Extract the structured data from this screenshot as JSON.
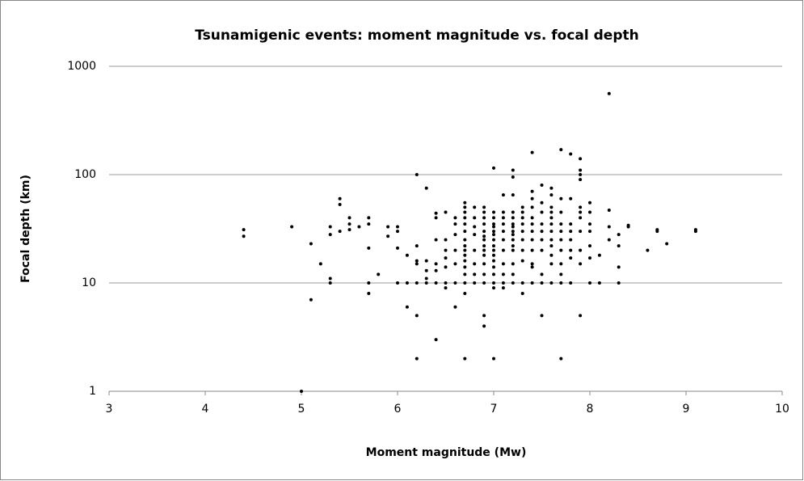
{
  "chart_data": {
    "type": "scatter",
    "title": "Tsunamigenic events: moment magnitude vs. focal depth",
    "xlabel": "Moment magnitude (Mw)",
    "ylabel": "Focal depth (km)",
    "color": "#000000",
    "yscale": "log",
    "grid": true,
    "xlim": [
      3,
      10
    ],
    "xticks": [
      3,
      4,
      5,
      6,
      7,
      8,
      9,
      10
    ],
    "ylim": [
      1,
      1000
    ],
    "yticks": [
      1,
      10,
      100,
      1000
    ],
    "x": [
      4.4,
      4.4,
      4.9,
      5.0,
      5.1,
      5.1,
      5.2,
      5.3,
      5.3,
      5.3,
      5.3,
      5.4,
      5.4,
      5.4,
      5.5,
      5.5,
      5.5,
      5.6,
      5.7,
      5.7,
      5.7,
      5.7,
      5.7,
      5.8,
      5.9,
      5.9,
      6.0,
      6.0,
      6.0,
      6.0,
      6.1,
      6.1,
      6.1,
      6.2,
      6.2,
      6.2,
      6.2,
      6.2,
      6.2,
      6.2,
      6.3,
      6.3,
      6.3,
      6.3,
      6.3,
      6.4,
      6.4,
      6.4,
      6.4,
      6.4,
      6.4,
      6.4,
      6.5,
      6.5,
      6.5,
      6.5,
      6.5,
      6.5,
      6.5,
      6.6,
      6.6,
      6.6,
      6.6,
      6.6,
      6.6,
      6.6,
      6.7,
      6.7,
      6.7,
      6.7,
      6.7,
      6.7,
      6.7,
      6.7,
      6.7,
      6.7,
      6.7,
      6.7,
      6.7,
      6.7,
      6.7,
      6.7,
      6.8,
      6.8,
      6.8,
      6.8,
      6.8,
      6.8,
      6.8,
      6.8,
      6.9,
      6.9,
      6.9,
      6.9,
      6.9,
      6.9,
      6.9,
      6.9,
      6.9,
      6.9,
      6.9,
      6.9,
      6.9,
      6.9,
      6.9,
      7.0,
      7.0,
      7.0,
      7.0,
      7.0,
      7.0,
      7.0,
      7.0,
      7.0,
      7.0,
      7.0,
      7.0,
      7.0,
      7.0,
      7.0,
      7.0,
      7.0,
      7.1,
      7.1,
      7.1,
      7.1,
      7.1,
      7.1,
      7.1,
      7.1,
      7.1,
      7.1,
      7.1,
      7.2,
      7.2,
      7.2,
      7.2,
      7.2,
      7.2,
      7.2,
      7.2,
      7.2,
      7.2,
      7.2,
      7.2,
      7.2,
      7.2,
      7.2,
      7.3,
      7.3,
      7.3,
      7.3,
      7.3,
      7.3,
      7.3,
      7.3,
      7.3,
      7.3,
      7.4,
      7.4,
      7.4,
      7.4,
      7.4,
      7.4,
      7.4,
      7.4,
      7.4,
      7.4,
      7.4,
      7.4,
      7.5,
      7.5,
      7.5,
      7.5,
      7.5,
      7.5,
      7.5,
      7.5,
      7.5,
      7.5,
      7.6,
      7.6,
      7.6,
      7.6,
      7.6,
      7.6,
      7.6,
      7.6,
      7.6,
      7.6,
      7.6,
      7.6,
      7.7,
      7.7,
      7.7,
      7.7,
      7.7,
      7.7,
      7.7,
      7.7,
      7.7,
      7.7,
      7.7,
      7.8,
      7.8,
      7.8,
      7.8,
      7.8,
      7.8,
      7.8,
      7.8,
      7.9,
      7.9,
      7.9,
      7.9,
      7.9,
      7.9,
      7.9,
      7.9,
      7.9,
      7.9,
      7.9,
      8.0,
      8.0,
      8.0,
      8.0,
      8.0,
      8.0,
      8.0,
      8.1,
      8.1,
      8.2,
      8.2,
      8.2,
      8.2,
      8.3,
      8.3,
      8.3,
      8.3,
      8.4,
      8.4,
      8.6,
      8.7,
      8.7,
      8.8,
      9.1,
      9.1
    ],
    "values": [
      31,
      27,
      33,
      1,
      23,
      7,
      15,
      33,
      28,
      11,
      10,
      60,
      53,
      30,
      40,
      35,
      31,
      33,
      40,
      35,
      21,
      10,
      8,
      12,
      33,
      27,
      33,
      30,
      21,
      10,
      18,
      10,
      6,
      100,
      22,
      16,
      15,
      10,
      5,
      2,
      75,
      16,
      13,
      11,
      10,
      44,
      40,
      25,
      15,
      13,
      10,
      3,
      45,
      25,
      20,
      17,
      14,
      10,
      9,
      40,
      35,
      28,
      20,
      15,
      10,
      6,
      55,
      50,
      45,
      40,
      35,
      30,
      25,
      22,
      20,
      18,
      16,
      14,
      12,
      10,
      8,
      2,
      50,
      40,
      33,
      28,
      20,
      15,
      12,
      10,
      50,
      45,
      40,
      35,
      30,
      27,
      25,
      22,
      20,
      18,
      15,
      12,
      10,
      5,
      4,
      115,
      45,
      40,
      35,
      33,
      30,
      28,
      25,
      22,
      20,
      18,
      16,
      14,
      12,
      10,
      9,
      2,
      65,
      45,
      40,
      35,
      30,
      25,
      20,
      15,
      12,
      10,
      9,
      110,
      95,
      65,
      45,
      40,
      35,
      33,
      30,
      28,
      25,
      22,
      20,
      15,
      12,
      10,
      50,
      45,
      40,
      35,
      30,
      25,
      20,
      16,
      10,
      8,
      160,
      70,
      60,
      50,
      40,
      35,
      30,
      25,
      20,
      15,
      14,
      10,
      80,
      55,
      45,
      35,
      30,
      25,
      20,
      12,
      10,
      5,
      75,
      65,
      50,
      45,
      40,
      35,
      30,
      25,
      22,
      18,
      15,
      10,
      170,
      60,
      45,
      35,
      30,
      25,
      20,
      15,
      12,
      10,
      2,
      155,
      60,
      35,
      30,
      25,
      20,
      17,
      10,
      140,
      110,
      100,
      90,
      50,
      45,
      40,
      30,
      20,
      15,
      5,
      55,
      45,
      35,
      30,
      22,
      17,
      10,
      18,
      10,
      560,
      47,
      33,
      25,
      28,
      22,
      14,
      10,
      34,
      33,
      20,
      31,
      30,
      23,
      31,
      30
    ]
  }
}
